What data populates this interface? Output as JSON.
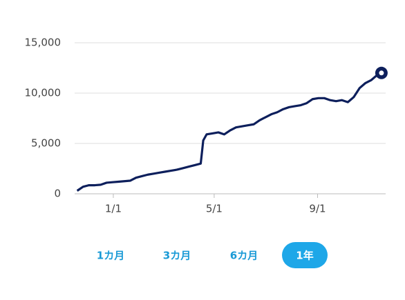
{
  "chart_data": {
    "type": "line",
    "x": [
      0,
      7,
      14,
      21,
      28,
      35,
      42,
      49,
      56,
      63,
      70,
      77,
      84,
      91,
      98,
      105,
      112,
      119,
      126,
      133,
      140,
      147,
      150,
      154,
      161,
      168,
      175,
      182,
      189,
      196,
      203,
      210,
      217,
      224,
      231,
      238,
      245,
      252,
      259,
      266,
      273,
      280,
      287,
      294,
      301,
      308,
      315,
      322,
      329,
      336,
      343,
      350,
      357,
      362
    ],
    "series": [
      {
        "color": "#0d1f5c",
        "values": [
          300,
          700,
          850,
          850,
          900,
          1100,
          1150,
          1200,
          1250,
          1300,
          1600,
          1750,
          1900,
          2000,
          2100,
          2200,
          2300,
          2400,
          2550,
          2700,
          2850,
          3000,
          5300,
          5900,
          6000,
          6100,
          5900,
          6300,
          6600,
          6700,
          6800,
          6900,
          7300,
          7600,
          7900,
          8100,
          8400,
          8600,
          8700,
          8800,
          9000,
          9400,
          9500,
          9500,
          9300,
          9200,
          9300,
          9100,
          9600,
          10500,
          11000,
          11300,
          11800,
          12000
        ]
      }
    ],
    "xlim": [
      -3,
      367
    ],
    "xticks": [
      {
        "value": 43,
        "label": "1/1"
      },
      {
        "value": 163,
        "label": "5/1"
      },
      {
        "value": 286,
        "label": "9/1"
      }
    ],
    "ylim": [
      0,
      15000
    ],
    "yticks": [
      0,
      {
        "value": 5000,
        "label": "5,000"
      },
      {
        "value": 10000,
        "label": "10,000"
      },
      {
        "value": 15000,
        "label": "15,000"
      }
    ],
    "grid": true,
    "end_marker": true
  },
  "range_buttons": [
    "1カ月",
    "3カ月",
    "6カ月",
    "1年"
  ],
  "selected_range": "1年"
}
